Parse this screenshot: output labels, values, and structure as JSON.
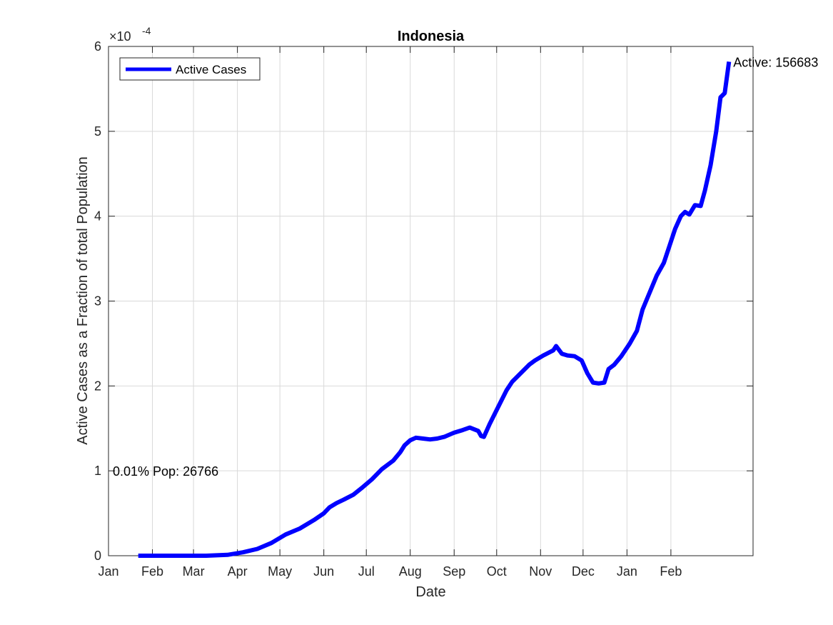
{
  "chart_data": {
    "type": "line",
    "title": "Indonesia",
    "xlabel": "Date",
    "ylabel": "Active Cases as a Fraction of total Population",
    "y_exponent_label": "×10",
    "y_exponent_power": "-4",
    "ylim": [
      0,
      6
    ],
    "y_ticks": [
      0,
      1,
      2,
      3,
      4,
      5,
      6
    ],
    "y_tick_labels": [
      "0",
      "1",
      "2",
      "3",
      "4",
      "5",
      "6"
    ],
    "xlim": [
      "2020-01-01",
      "2021-03-31"
    ],
    "x_ticks": [
      "2020-01-01",
      "2020-02-01",
      "2020-03-01",
      "2020-04-01",
      "2020-05-01",
      "2020-06-01",
      "2020-07-01",
      "2020-08-01",
      "2020-09-01",
      "2020-10-01",
      "2020-11-01",
      "2020-12-01",
      "2021-01-01",
      "2021-02-01"
    ],
    "x_tick_labels": [
      "Jan",
      "Feb",
      "Mar",
      "Apr",
      "May",
      "Jun",
      "Jul",
      "Aug",
      "Sep",
      "Oct",
      "Nov",
      "Dec",
      "Jan",
      "Feb"
    ],
    "grid": true,
    "legend_position": "top-left",
    "series": [
      {
        "name": "Active Cases",
        "color": "#0000ff",
        "points": [
          [
            "2020-01-22",
            0
          ],
          [
            "2020-02-15",
            0
          ],
          [
            "2020-03-10",
            0
          ],
          [
            "2020-03-25",
            0.01
          ],
          [
            "2020-04-05",
            0.04
          ],
          [
            "2020-04-15",
            0.08
          ],
          [
            "2020-04-25",
            0.15
          ],
          [
            "2020-05-05",
            0.25
          ],
          [
            "2020-05-15",
            0.32
          ],
          [
            "2020-05-25",
            0.42
          ],
          [
            "2020-06-01",
            0.5
          ],
          [
            "2020-06-05",
            0.57
          ],
          [
            "2020-06-10",
            0.62
          ],
          [
            "2020-06-15",
            0.66
          ],
          [
            "2020-06-22",
            0.72
          ],
          [
            "2020-06-28",
            0.8
          ],
          [
            "2020-07-05",
            0.9
          ],
          [
            "2020-07-12",
            1.02
          ],
          [
            "2020-07-20",
            1.12
          ],
          [
            "2020-07-25",
            1.22
          ],
          [
            "2020-07-28",
            1.3
          ],
          [
            "2020-08-01",
            1.36
          ],
          [
            "2020-08-05",
            1.39
          ],
          [
            "2020-08-10",
            1.38
          ],
          [
            "2020-08-15",
            1.37
          ],
          [
            "2020-08-20",
            1.38
          ],
          [
            "2020-08-25",
            1.4
          ],
          [
            "2020-09-01",
            1.45
          ],
          [
            "2020-09-07",
            1.48
          ],
          [
            "2020-09-12",
            1.51
          ],
          [
            "2020-09-18",
            1.47
          ],
          [
            "2020-09-20",
            1.41
          ],
          [
            "2020-09-22",
            1.4
          ],
          [
            "2020-09-26",
            1.55
          ],
          [
            "2020-10-02",
            1.75
          ],
          [
            "2020-10-08",
            1.95
          ],
          [
            "2020-10-12",
            2.05
          ],
          [
            "2020-10-18",
            2.15
          ],
          [
            "2020-10-24",
            2.25
          ],
          [
            "2020-10-28",
            2.3
          ],
          [
            "2020-11-03",
            2.36
          ],
          [
            "2020-11-10",
            2.42
          ],
          [
            "2020-11-12",
            2.47
          ],
          [
            "2020-11-16",
            2.38
          ],
          [
            "2020-11-20",
            2.36
          ],
          [
            "2020-11-25",
            2.35
          ],
          [
            "2020-11-30",
            2.3
          ],
          [
            "2020-12-04",
            2.15
          ],
          [
            "2020-12-08",
            2.04
          ],
          [
            "2020-12-12",
            2.03
          ],
          [
            "2020-12-16",
            2.04
          ],
          [
            "2020-12-19",
            2.2
          ],
          [
            "2020-12-23",
            2.25
          ],
          [
            "2020-12-28",
            2.35
          ],
          [
            "2021-01-03",
            2.5
          ],
          [
            "2021-01-08",
            2.65
          ],
          [
            "2021-01-12",
            2.9
          ],
          [
            "2021-01-17",
            3.1
          ],
          [
            "2021-01-22",
            3.3
          ],
          [
            "2021-01-27",
            3.45
          ],
          [
            "2021-01-31",
            3.65
          ],
          [
            "2021-02-04",
            3.85
          ],
          [
            "2021-02-08",
            4.0
          ],
          [
            "2021-02-11",
            4.05
          ],
          [
            "2021-02-14",
            4.02
          ],
          [
            "2021-02-18",
            4.13
          ],
          [
            "2021-02-22",
            4.12
          ],
          [
            "2021-02-25",
            4.3
          ],
          [
            "2021-03-01",
            4.6
          ],
          [
            "2021-03-05",
            5.0
          ],
          [
            "2021-03-08",
            5.4
          ],
          [
            "2021-03-11",
            5.45
          ],
          [
            "2021-03-14",
            5.82
          ]
        ]
      }
    ],
    "annotations": [
      {
        "text": "Active: 156683",
        "date": "2021-03-14",
        "y": 5.82,
        "anchor": "right-of-point"
      },
      {
        "text": "0.01% Pop: 26766",
        "date": "2020-01-01",
        "y": 1.0,
        "anchor": "right-of-point"
      }
    ]
  }
}
